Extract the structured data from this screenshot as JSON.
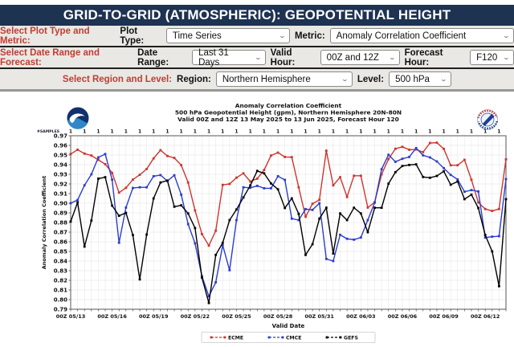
{
  "header": {
    "title": "GRID-TO-GRID (ATMOSPHERIC): GEOPOTENTIAL HEIGHT"
  },
  "controls": {
    "row1": {
      "section": "Select Plot Type and Metric:",
      "f1": "Plot Type:",
      "v1": "Time Series",
      "f2": "Metric:",
      "v2": "Anomaly Correlation Coefficient"
    },
    "row2": {
      "section": "Select Date Range and Forecast:",
      "f1": "Date Range:",
      "v1": "Last 31 Days",
      "f2": "Valid Hour:",
      "v2": "00Z and 12Z",
      "f3": "Forecast Hour:",
      "v3": "F120"
    },
    "row3": {
      "section": "Select Region and Level:",
      "f1": "Region:",
      "v1": "Northern Hemisphere",
      "f2": "Level:",
      "v2": "500 hPa"
    }
  },
  "chart_data": {
    "type": "line",
    "title_lines": [
      "Anomaly Correlation Coefficient",
      "500 hPa Geopotential Height (gpm), Northern Hemisphere 20N-80N",
      "Valid 00Z and 12Z 13 May 2025 to 13 Jun 2025, Forecast Hour 120"
    ],
    "xlabel": "Valid Date",
    "ylabel": "Anomaly Correlation Coefficient",
    "ylim": [
      0.79,
      0.97
    ],
    "ytick": 0.01,
    "grid": true,
    "legend_position": "bottom",
    "samples_label": "#SAMPLES",
    "samples_value": "1",
    "x_tick_labels": [
      "00Z 05/13",
      "00Z 05/16",
      "00Z 05/19",
      "00Z 05/22",
      "00Z 05/25",
      "00Z 05/28",
      "00Z 05/31",
      "00Z 06/03",
      "00Z 06/06",
      "00Z 06/09",
      "00Z 06/12"
    ],
    "tick_every": 6,
    "points_per_day": 2,
    "series": [
      {
        "name": "ECME",
        "color": "#cf342e",
        "values": [
          0.951,
          0.9555,
          0.9515,
          0.9495,
          0.945,
          0.9405,
          0.9315,
          0.911,
          0.916,
          0.9245,
          0.9295,
          0.9355,
          0.9465,
          0.955,
          0.949,
          0.947,
          0.9395,
          0.9215,
          0.8925,
          0.868,
          0.856,
          0.8715,
          0.919,
          0.92,
          0.9265,
          0.931,
          0.9225,
          0.9255,
          0.9345,
          0.9495,
          0.9525,
          0.948,
          0.9478,
          0.9165,
          0.886,
          0.8995,
          0.9035,
          0.9545,
          0.9185,
          0.927,
          0.9065,
          0.9285,
          0.9285,
          0.8955,
          0.901,
          0.93,
          0.9458,
          0.9565,
          0.9585,
          0.9555,
          0.9558,
          0.953,
          0.9625,
          0.9628,
          0.9564,
          0.9394,
          0.9394,
          0.945,
          0.9244,
          0.9008,
          0.894,
          0.892,
          0.894,
          0.9455
        ]
      },
      {
        "name": "CMCE",
        "color": "#2b3ccd",
        "values": [
          0.9,
          0.9033,
          0.9186,
          0.93,
          0.9475,
          0.951,
          0.9244,
          0.859,
          0.8955,
          0.9158,
          0.9165,
          0.9165,
          0.928,
          0.9292,
          0.9231,
          0.929,
          0.9089,
          0.8783,
          0.8583,
          0.8242,
          0.8035,
          0.818,
          0.8565,
          0.8305,
          0.8825,
          0.9165,
          0.916,
          0.918,
          0.9155,
          0.9155,
          0.928,
          0.9242,
          0.884,
          0.8825,
          0.8939,
          0.8931,
          0.9,
          0.8422,
          0.84,
          0.8672,
          0.8631,
          0.8622,
          0.8644,
          0.8825,
          0.9006,
          0.9353,
          0.9503,
          0.943,
          0.9461,
          0.948,
          0.9572,
          0.9497,
          0.9475,
          0.9433,
          0.9364,
          0.9294,
          0.9247,
          0.9119,
          0.9136,
          0.9122,
          0.8644,
          0.8653,
          0.8658,
          0.925
        ]
      },
      {
        "name": "GEFS",
        "color": "#000000",
        "values": [
          0.881,
          0.9008,
          0.855,
          0.882,
          0.9255,
          0.927,
          0.8975,
          0.887,
          0.89,
          0.867,
          0.821,
          0.8675,
          0.905,
          0.9215,
          0.9235,
          0.8964,
          0.8978,
          0.8894,
          0.8742,
          0.8228,
          0.7965,
          0.8464,
          0.8589,
          0.8825,
          0.8935,
          0.906,
          0.9185,
          0.9335,
          0.931,
          0.9205,
          0.9144,
          0.895,
          0.905,
          0.889,
          0.8464,
          0.8575,
          0.884,
          0.8953,
          0.8478,
          0.8894,
          0.8825,
          0.8953,
          0.8894,
          0.87,
          0.8953,
          0.8953,
          0.9203,
          0.9322,
          0.9386,
          0.9397,
          0.9403,
          0.9272,
          0.9264,
          0.9283,
          0.9331,
          0.9192,
          0.9225,
          0.9042,
          0.9089,
          0.895,
          0.867,
          0.85,
          0.8139,
          0.9042
        ]
      }
    ]
  },
  "colors": {
    "header_bg": "#1e3252",
    "section_label": "#c03d32",
    "row_bg": "#e9e8e4"
  }
}
